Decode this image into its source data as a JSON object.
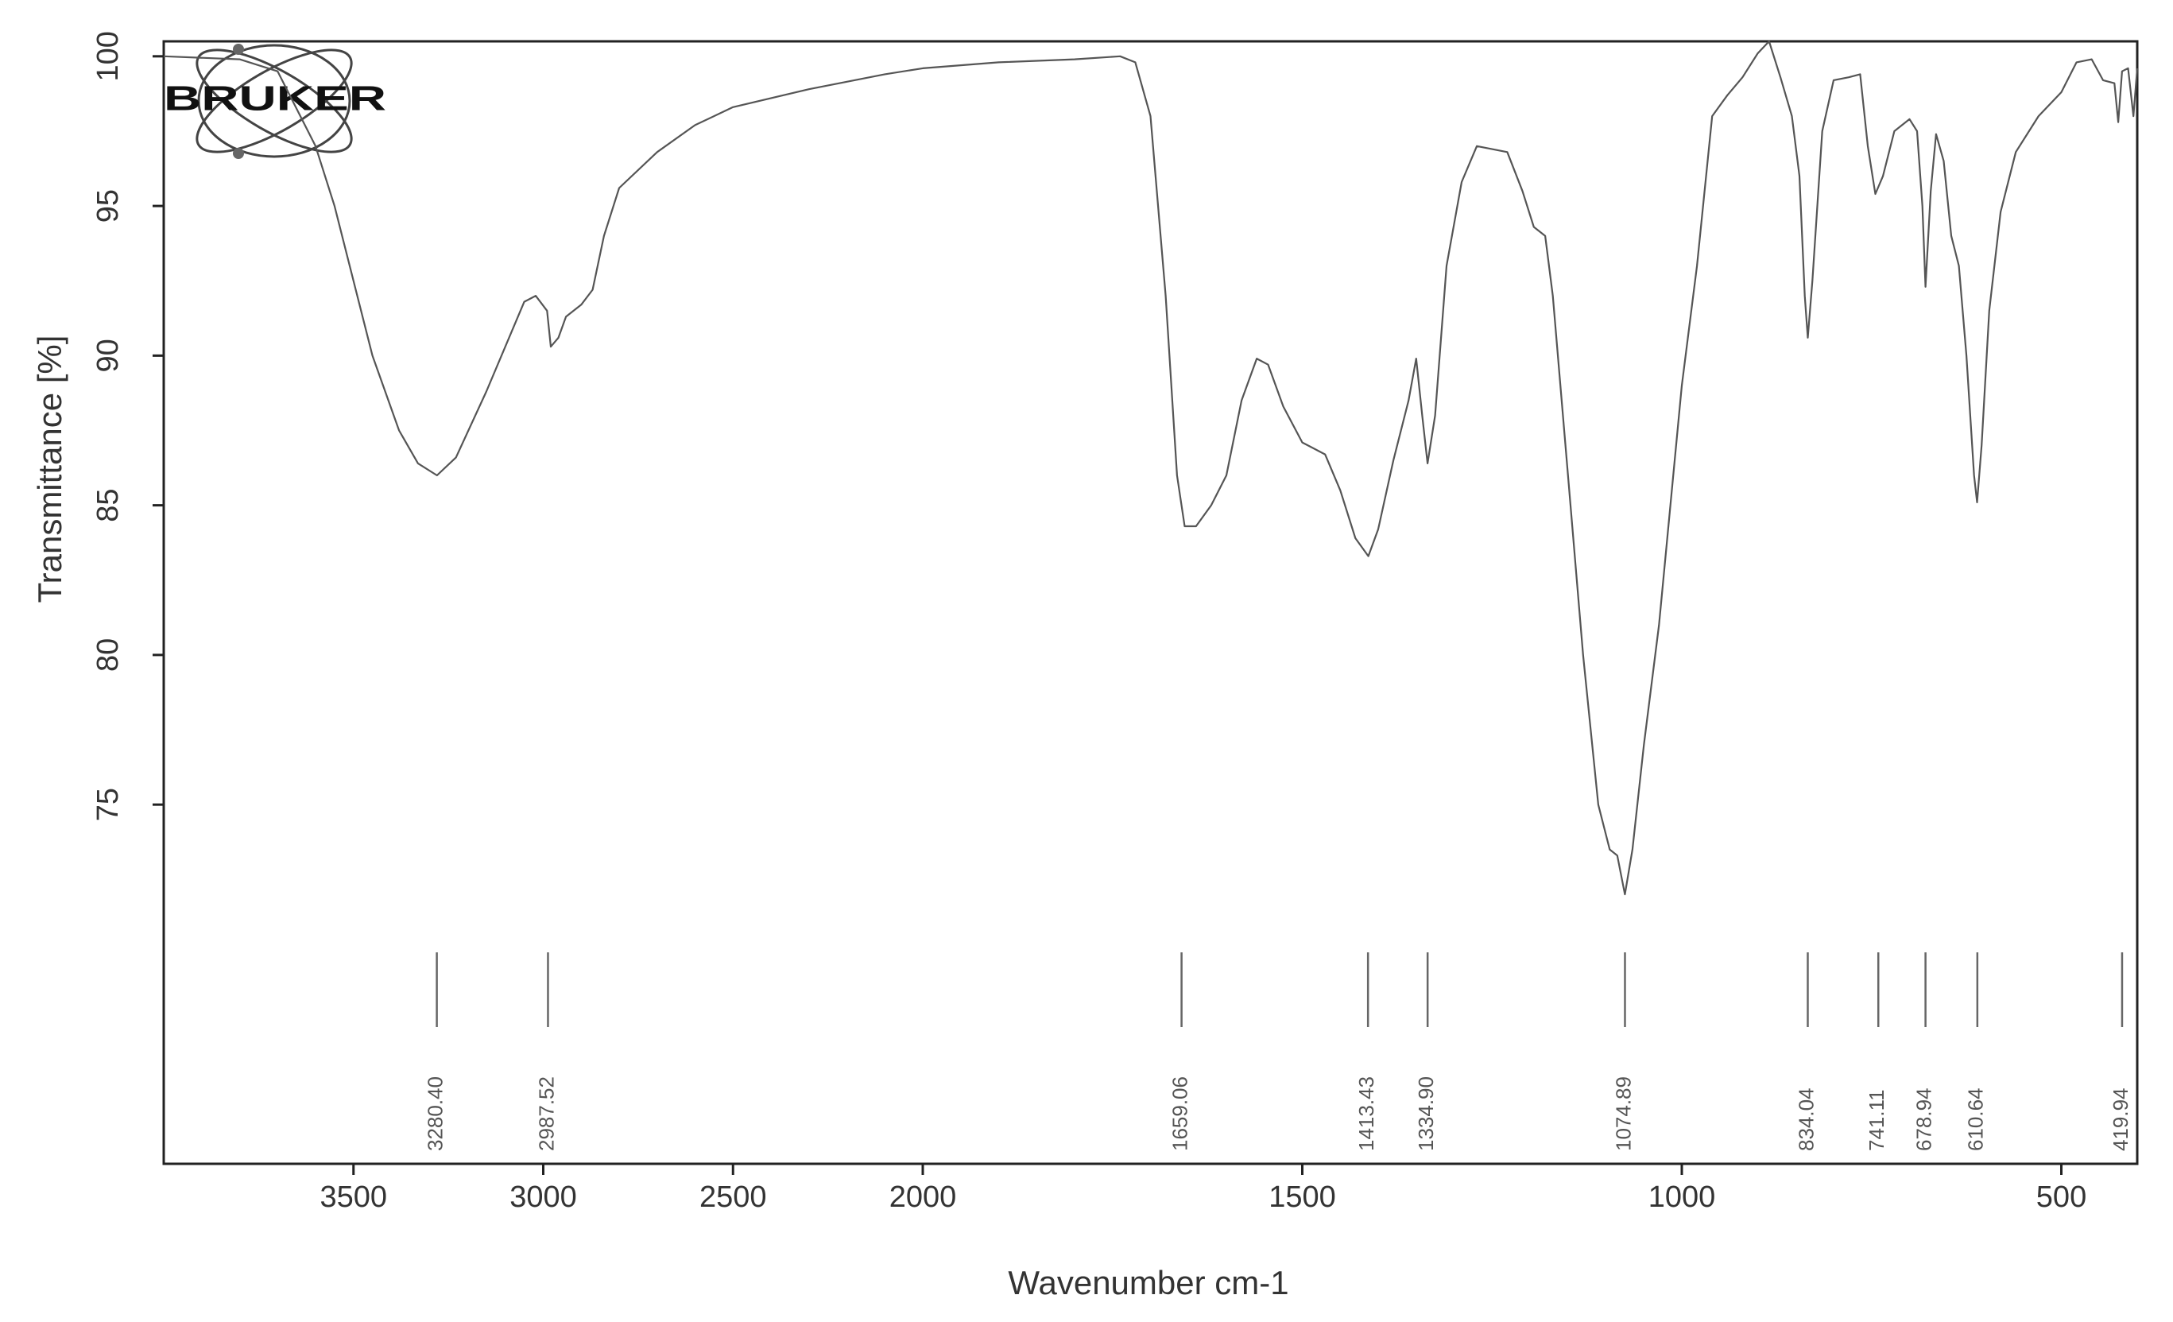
{
  "chart_data": {
    "type": "line",
    "logo": "BRUKER",
    "xlabel": "Wavenumber cm-1",
    "ylabel": "Transmittance [%]",
    "xlim": [
      4000,
      400
    ],
    "x_break": 2000,
    "x_break_expansion": 2,
    "xticks": [
      3500,
      3000,
      2500,
      2000,
      1500,
      1000,
      500
    ],
    "ylim": [
      63,
      100.5
    ],
    "yticks": [
      75,
      80,
      85,
      90,
      95,
      100
    ],
    "color": "#555555",
    "x": [
      4000,
      3800,
      3700,
      3600,
      3550,
      3450,
      3380,
      3330,
      3280,
      3230,
      3150,
      3050,
      3020,
      2990,
      2980,
      2960,
      2940,
      2900,
      2870,
      2840,
      2800,
      2700,
      2600,
      2500,
      2300,
      2100,
      2000,
      1900,
      1800,
      1740,
      1720,
      1700,
      1680,
      1665,
      1655,
      1640,
      1620,
      1600,
      1580,
      1560,
      1545,
      1525,
      1500,
      1470,
      1450,
      1430,
      1413,
      1400,
      1380,
      1360,
      1350,
      1342,
      1335,
      1325,
      1310,
      1290,
      1270,
      1250,
      1230,
      1210,
      1195,
      1180,
      1170,
      1150,
      1130,
      1110,
      1095,
      1085,
      1075,
      1065,
      1050,
      1030,
      1000,
      980,
      960,
      940,
      920,
      900,
      885,
      870,
      855,
      845,
      838,
      834,
      828,
      815,
      800,
      780,
      765,
      755,
      745,
      735,
      720,
      700,
      690,
      683,
      679,
      672,
      665,
      655,
      645,
      635,
      625,
      615,
      611,
      605,
      595,
      580,
      560,
      530,
      500,
      480,
      460,
      445,
      430,
      425,
      420,
      412,
      405,
      400
    ],
    "values": [
      100,
      99.9,
      99.5,
      97,
      95,
      90,
      87.5,
      86.4,
      86,
      86.6,
      88.8,
      91.8,
      92,
      91.5,
      90.3,
      90.6,
      91.3,
      91.7,
      92.2,
      94,
      95.6,
      96.8,
      97.7,
      98.3,
      98.9,
      99.4,
      99.6,
      99.8,
      99.9,
      100,
      99.8,
      98,
      92,
      86,
      84.3,
      84.3,
      85,
      86,
      88.5,
      89.9,
      89.7,
      88.3,
      87.1,
      86.7,
      85.5,
      83.9,
      83.3,
      84.2,
      86.5,
      88.5,
      89.9,
      88,
      86.4,
      88,
      93,
      95.8,
      97,
      96.9,
      96.8,
      95.5,
      94.3,
      94,
      92,
      86,
      80,
      75,
      73.5,
      73.3,
      72,
      73.5,
      77,
      81,
      89,
      93,
      98,
      98.7,
      99.3,
      100.1,
      100.5,
      99.3,
      98,
      96,
      92,
      90.6,
      92.5,
      97.5,
      99.2,
      99.3,
      99.4,
      97,
      95.4,
      96,
      97.5,
      97.9,
      97.5,
      95,
      92.3,
      95.5,
      97.4,
      96.5,
      94,
      93,
      90,
      86,
      85.1,
      87,
      91.5,
      94.8,
      96.8,
      98,
      98.8,
      99.8,
      99.9,
      99.2,
      99.1,
      97.8,
      99.5,
      99.6,
      98,
      99.6
    ],
    "peaks": [
      {
        "value": 3280.4,
        "label": "3280.40"
      },
      {
        "value": 2987.52,
        "label": "2987.52"
      },
      {
        "value": 1659.06,
        "label": "1659.06"
      },
      {
        "value": 1413.43,
        "label": "1413.43"
      },
      {
        "value": 1334.9,
        "label": "1334.90"
      },
      {
        "value": 1074.89,
        "label": "1074.89"
      },
      {
        "value": 834.04,
        "label": "834.04"
      },
      {
        "value": 741.11,
        "label": "741.11"
      },
      {
        "value": 678.94,
        "label": "678.94"
      },
      {
        "value": 610.64,
        "label": "610.64"
      },
      {
        "value": 419.94,
        "label": "419.94"
      }
    ]
  }
}
